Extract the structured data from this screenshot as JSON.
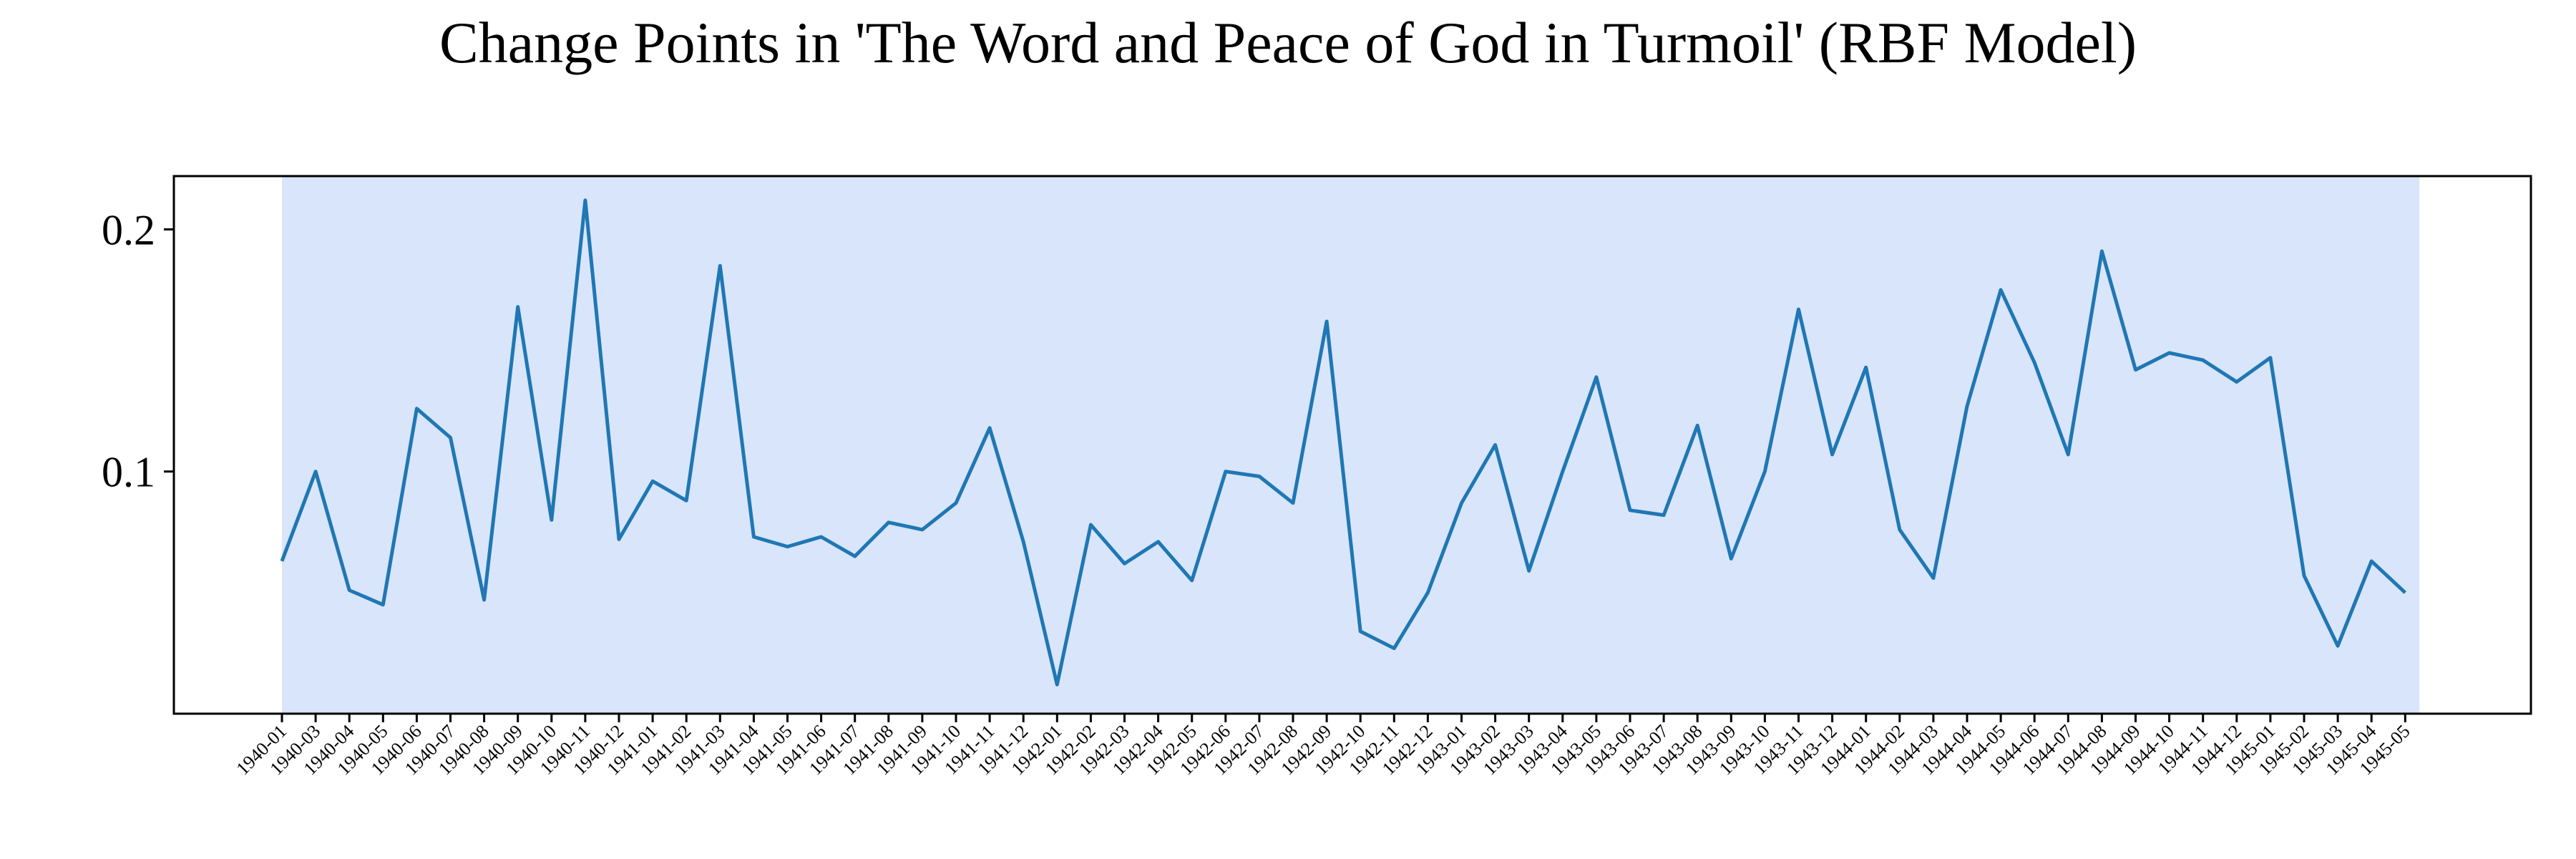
{
  "chart_data": {
    "type": "line",
    "title": "Change Points in 'The Word and Peace of God in Turmoil' (RBF Model)",
    "xlabel": "",
    "ylabel": "",
    "x": [
      "1940-01",
      "1940-03",
      "1940-04",
      "1940-05",
      "1940-06",
      "1940-07",
      "1940-08",
      "1940-09",
      "1940-10",
      "1940-11",
      "1940-12",
      "1941-01",
      "1941-02",
      "1941-03",
      "1941-04",
      "1941-05",
      "1941-06",
      "1941-07",
      "1941-08",
      "1941-09",
      "1941-10",
      "1941-11",
      "1941-12",
      "1942-01",
      "1942-02",
      "1942-03",
      "1942-04",
      "1942-05",
      "1942-06",
      "1942-07",
      "1942-08",
      "1942-09",
      "1942-10",
      "1942-11",
      "1942-12",
      "1943-01",
      "1943-02",
      "1943-03",
      "1943-04",
      "1943-05",
      "1943-06",
      "1943-07",
      "1943-08",
      "1943-09",
      "1943-10",
      "1943-11",
      "1943-12",
      "1944-01",
      "1944-02",
      "1944-03",
      "1944-04",
      "1944-05",
      "1944-06",
      "1944-07",
      "1944-08",
      "1944-09",
      "1944-10",
      "1944-11",
      "1944-12",
      "1945-01",
      "1945-02",
      "1945-03",
      "1945-04",
      "1945-05"
    ],
    "series": [
      {
        "values": [
          0.063,
          0.1,
          0.051,
          0.045,
          0.126,
          0.114,
          0.047,
          0.168,
          0.08,
          0.212,
          0.072,
          0.096,
          0.088,
          0.185,
          0.073,
          0.069,
          0.073,
          0.065,
          0.079,
          0.076,
          0.087,
          0.118,
          0.071,
          0.012,
          0.078,
          0.062,
          0.071,
          0.055,
          0.1,
          0.098,
          0.087,
          0.162,
          0.034,
          0.027,
          0.05,
          0.087,
          0.111,
          0.059,
          0.1,
          0.139,
          0.084,
          0.082,
          0.119,
          0.064,
          0.1,
          0.167,
          0.107,
          0.143,
          0.076,
          0.056,
          0.127,
          0.175,
          0.145,
          0.107,
          0.191,
          0.142,
          0.149,
          0.146,
          0.137,
          0.147,
          0.057,
          0.028,
          0.063,
          0.05
        ],
        "color": "#1f77b4"
      }
    ],
    "yticks": [
      "0.1",
      "0.2"
    ],
    "ylim": [
      0.0,
      0.222
    ],
    "shaded_region": {
      "from": "1940-01",
      "to": "1945-05",
      "color": "#d9e5fa"
    },
    "grid": false,
    "legend": "none"
  }
}
